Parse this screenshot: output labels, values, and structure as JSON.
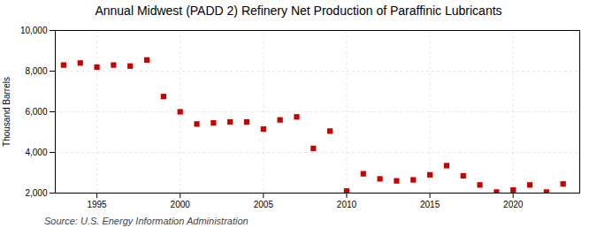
{
  "chart_data": {
    "type": "scatter",
    "title": "Annual Midwest (PADD 2) Refinery Net Production of Paraffinic Lubricants",
    "ylabel": "Thousand Barrels",
    "source": "Source: U.S. Energy Information Administration",
    "x": [
      1993,
      1994,
      1995,
      1996,
      1997,
      1998,
      1999,
      2000,
      2001,
      2002,
      2003,
      2004,
      2005,
      2006,
      2007,
      2008,
      2009,
      2010,
      2011,
      2012,
      2013,
      2014,
      2015,
      2016,
      2017,
      2018,
      2019,
      2020,
      2021,
      2022,
      2023
    ],
    "values": [
      8300,
      8400,
      8200,
      8300,
      8250,
      8550,
      6750,
      6000,
      5400,
      5450,
      5500,
      5500,
      5150,
      5600,
      5750,
      4200,
      5050,
      2100,
      2950,
      2700,
      2600,
      2650,
      2900,
      3350,
      2850,
      2400,
      2050,
      2150,
      2400,
      2050,
      2450
    ],
    "color": "#cc0000",
    "marker": "square",
    "xlim": [
      1992.5,
      2024
    ],
    "xticks": [
      1995,
      2000,
      2005,
      2010,
      2015,
      2020
    ],
    "ylim": [
      2000,
      10000
    ],
    "yticks": [
      {
        "value": 2000,
        "label": "2,000"
      },
      {
        "value": 4000,
        "label": "4,000"
      },
      {
        "value": 6000,
        "label": "6,000"
      },
      {
        "value": 8000,
        "label": "8,000"
      },
      {
        "value": 10000,
        "label": "10,000"
      }
    ],
    "grid": true
  }
}
